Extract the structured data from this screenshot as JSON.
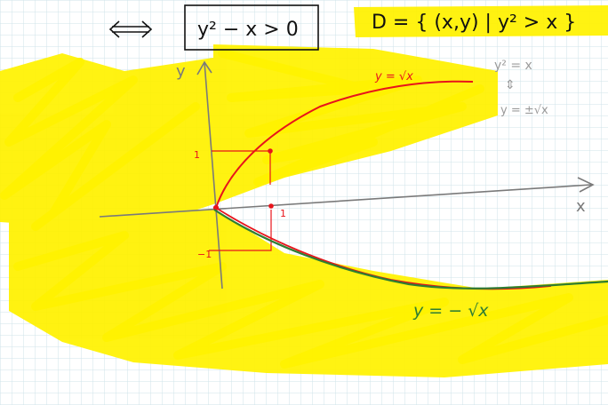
{
  "colors": {
    "grid": "#cfe3ea",
    "highlight": "#fff200",
    "ink": "#111111",
    "red": "#e8141b",
    "green": "#2e7d32",
    "gray_axis": "#7a7a7a",
    "gray_note": "#9a9a9a"
  },
  "top": {
    "equivalence": "<=>",
    "inequality": "y² − x > 0",
    "domain": "D = { (x,y) | y² > x }"
  },
  "axes": {
    "x_label": "x",
    "y_label": "y"
  },
  "curves": {
    "upper_label": "y = √x",
    "lower_label": "y = − √x"
  },
  "ticks": {
    "one_y": "1",
    "one_x": "1",
    "minus_one": "−1"
  },
  "note": {
    "line1": "y² = x",
    "arrow": "⇕",
    "line2": "y = ±√x"
  },
  "icons": [
    "equivalence-arrow",
    "double-arrow-icon"
  ]
}
